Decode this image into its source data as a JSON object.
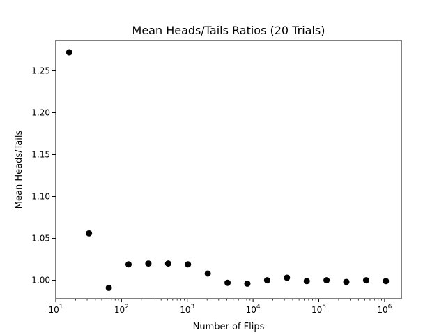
{
  "chart_data": {
    "type": "scatter",
    "title": "Mean Heads/Tails Ratios (20 Trials)",
    "xlabel": "Number of Flips",
    "ylabel": "Mean Heads/Tails",
    "x_scale": "log",
    "xlim": [
      10,
      1800000
    ],
    "ylim": [
      0.978,
      1.2862
    ],
    "x_ticks": [
      {
        "value": 10,
        "base": "10",
        "exp": "1"
      },
      {
        "value": 100,
        "base": "10",
        "exp": "2"
      },
      {
        "value": 1000,
        "base": "10",
        "exp": "3"
      },
      {
        "value": 10000,
        "base": "10",
        "exp": "4"
      },
      {
        "value": 100000,
        "base": "10",
        "exp": "5"
      },
      {
        "value": 1000000,
        "base": "10",
        "exp": "6"
      }
    ],
    "y_ticks": [
      {
        "value": 1.0,
        "label": "1.00"
      },
      {
        "value": 1.05,
        "label": "1.05"
      },
      {
        "value": 1.1,
        "label": "1.10"
      },
      {
        "value": 1.15,
        "label": "1.15"
      },
      {
        "value": 1.2,
        "label": "1.20"
      },
      {
        "value": 1.25,
        "label": "1.25"
      }
    ],
    "grid": false,
    "marker_color": "#000000",
    "series": [
      {
        "x": [
          16,
          32,
          64,
          128,
          256,
          512,
          1024,
          2048,
          4096,
          8192,
          16384,
          32768,
          65536,
          131072,
          262144,
          524288,
          1048576
        ],
        "y": [
          1.272,
          1.056,
          0.991,
          1.019,
          1.02,
          1.02,
          1.019,
          1.008,
          0.997,
          0.996,
          1.0,
          1.003,
          0.999,
          1.0,
          0.998,
          1.0,
          0.999
        ]
      }
    ]
  }
}
